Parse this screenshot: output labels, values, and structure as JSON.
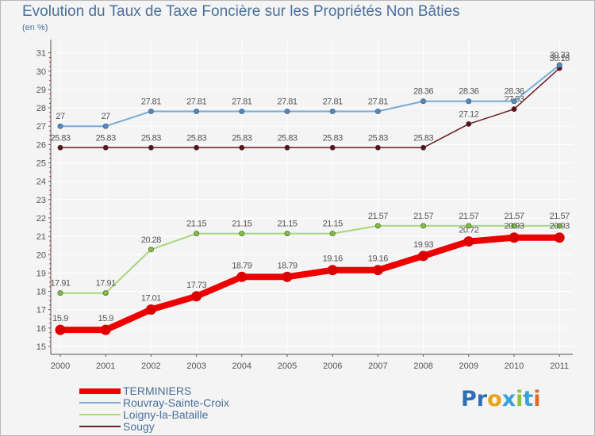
{
  "title": "Evolution du Taux de Taxe Foncière sur les Propriétés Non Bâties",
  "unit_label": "(en %)",
  "logo": {
    "text": "Proxiti",
    "letters": [
      {
        "ch": "P",
        "color": "#2f6fb5"
      },
      {
        "ch": "r",
        "color": "#2f6fb5"
      },
      {
        "ch": "o",
        "color": "#e8a21c"
      },
      {
        "ch": "x",
        "color": "#3aa0d8"
      },
      {
        "ch": "i",
        "color": "#8fc43a"
      },
      {
        "ch": "t",
        "color": "#3aa0d8"
      },
      {
        "ch": "i",
        "color": "#e06a2a"
      }
    ]
  },
  "colors": {
    "background": "#f4f4f4",
    "grid": "#ffffff",
    "axis": "#555555",
    "text": "#4a6f9c",
    "label": "#555555"
  },
  "chart_data": {
    "type": "line",
    "title": "Evolution du Taux de Taxe Foncière sur les Propriétés Non Bâties",
    "ylabel": "(en %)",
    "xlabel": "",
    "ylim": [
      15,
      31
    ],
    "yticks": [
      15,
      16,
      17,
      18,
      19,
      20,
      21,
      22,
      23,
      24,
      25,
      26,
      27,
      28,
      29,
      30,
      31
    ],
    "grid": true,
    "legend_position": "bottom-left",
    "x": [
      "2000",
      "2001",
      "2002",
      "2003",
      "2004",
      "2005",
      "2006",
      "2007",
      "2008",
      "2009",
      "2010",
      "2011"
    ],
    "series": [
      {
        "name": "Sougy",
        "color": "#6b1b22",
        "marker": "#5a1218",
        "width": 1.5,
        "values": [
          25.83,
          25.83,
          25.83,
          25.83,
          25.83,
          25.83,
          25.83,
          25.83,
          25.83,
          27.12,
          27.93,
          30.16
        ],
        "labels": [
          "25.83",
          "25.83",
          "25.83",
          "25.83",
          "25.83",
          "25.83",
          "25.83",
          "25.83",
          "25.83",
          "27.12",
          "27.93",
          "30.16"
        ]
      },
      {
        "name": "Loigny-la-Bataille",
        "color": "#a8d878",
        "marker": "#7cc13c",
        "width": 2,
        "values": [
          17.91,
          17.91,
          20.28,
          21.15,
          21.15,
          21.15,
          21.15,
          21.57,
          21.57,
          21.57,
          21.57,
          21.57
        ],
        "labels": [
          "17.91",
          "17.91",
          "20.28",
          "21.15",
          "21.15",
          "21.15",
          "21.15",
          "21.57",
          "21.57",
          "21.57",
          "21.57",
          "21.57"
        ]
      },
      {
        "name": "Rouvray-Sainte-Croix",
        "color": "#7aaad6",
        "marker": "#4a8ac8",
        "width": 2,
        "values": [
          27,
          27,
          27.81,
          27.81,
          27.81,
          27.81,
          27.81,
          27.81,
          28.36,
          28.36,
          28.36,
          30.33
        ],
        "labels": [
          "27",
          "27",
          "27.81",
          "27.81",
          "27.81",
          "27.81",
          "27.81",
          "27.81",
          "28.36",
          "28.36",
          "28.36",
          "30.33"
        ]
      },
      {
        "name": "TERMINIERS",
        "color": "#ee0000",
        "marker": "#dd0000",
        "width": 8,
        "values": [
          15.9,
          15.9,
          17.01,
          17.73,
          18.79,
          18.79,
          19.16,
          19.16,
          19.93,
          20.72,
          20.93,
          20.93
        ],
        "labels": [
          "15.9",
          "15.9",
          "17.01",
          "17.73",
          "18.79",
          "18.79",
          "19.16",
          "19.16",
          "19.93",
          "20.72",
          "20.93",
          "20.93"
        ]
      }
    ],
    "legend": [
      "TERMINIERS",
      "Rouvray-Sainte-Croix",
      "Loigny-la-Bataille",
      "Sougy"
    ]
  }
}
